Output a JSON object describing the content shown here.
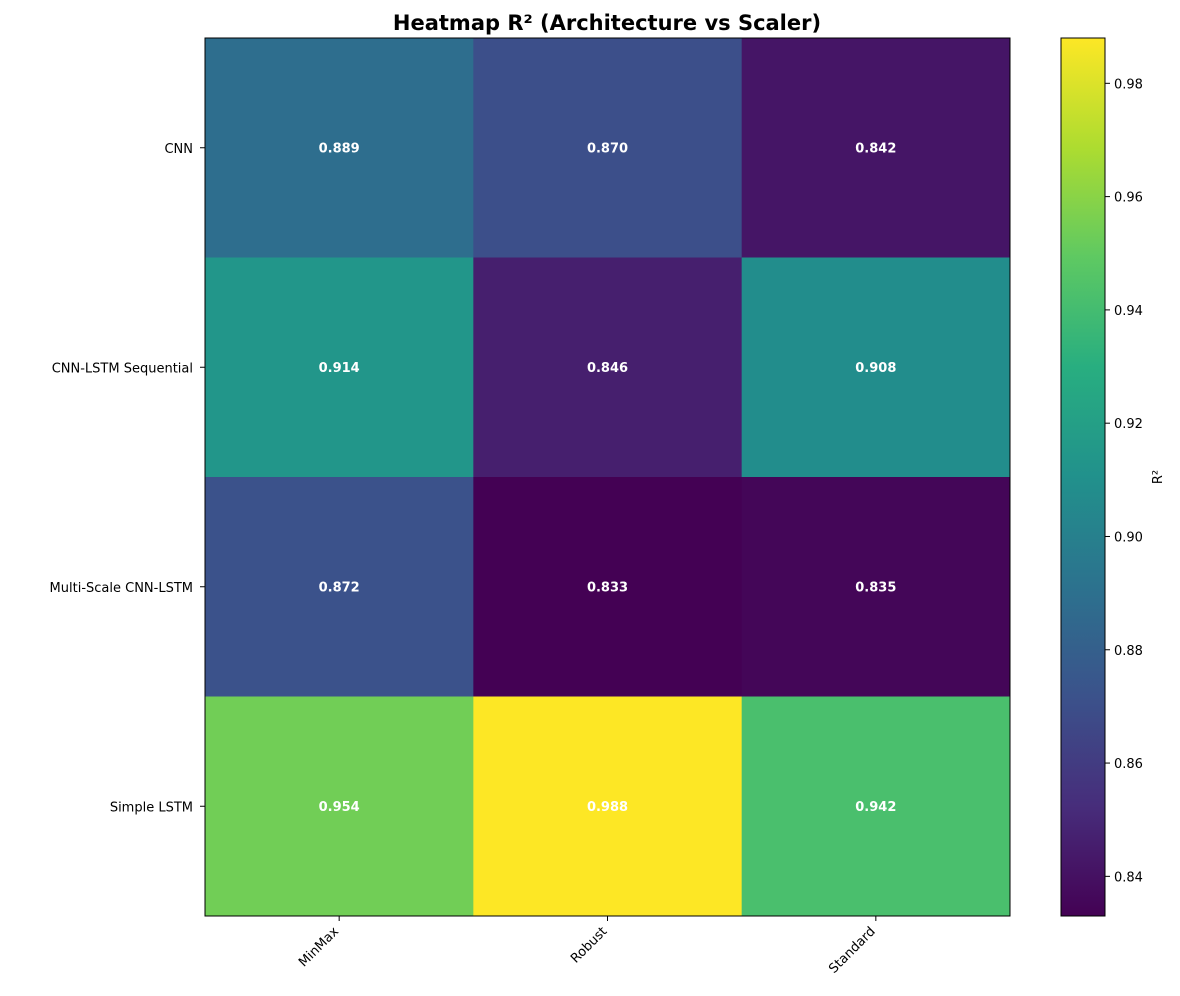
{
  "chart_data": {
    "type": "heatmap",
    "title": "Heatmap R² (Architecture vs Scaler)",
    "xlabel": "",
    "ylabel": "",
    "x_categories": [
      "MinMax",
      "Robust",
      "Standard"
    ],
    "y_categories": [
      "CNN",
      "CNN-LSTM Sequential",
      "Multi-Scale CNN-LSTM",
      "Simple LSTM"
    ],
    "values": [
      [
        0.889,
        0.87,
        0.842
      ],
      [
        0.914,
        0.846,
        0.908
      ],
      [
        0.872,
        0.833,
        0.835
      ],
      [
        0.954,
        0.988,
        0.942
      ]
    ],
    "value_labels": [
      [
        "0.889",
        "0.870",
        "0.842"
      ],
      [
        "0.914",
        "0.846",
        "0.908"
      ],
      [
        "0.872",
        "0.833",
        "0.835"
      ],
      [
        "0.954",
        "0.988",
        "0.942"
      ]
    ],
    "colormap": "viridis",
    "colorbar": {
      "label": "R²",
      "range": [
        0.833,
        0.988
      ],
      "ticks": [
        0.84,
        0.86,
        0.88,
        0.9,
        0.92,
        0.94,
        0.96,
        0.98
      ],
      "tick_labels": [
        "0.84",
        "0.86",
        "0.88",
        "0.90",
        "0.92",
        "0.94",
        "0.96",
        "0.98"
      ]
    },
    "x_tick_rotation": 45,
    "grid": false
  }
}
